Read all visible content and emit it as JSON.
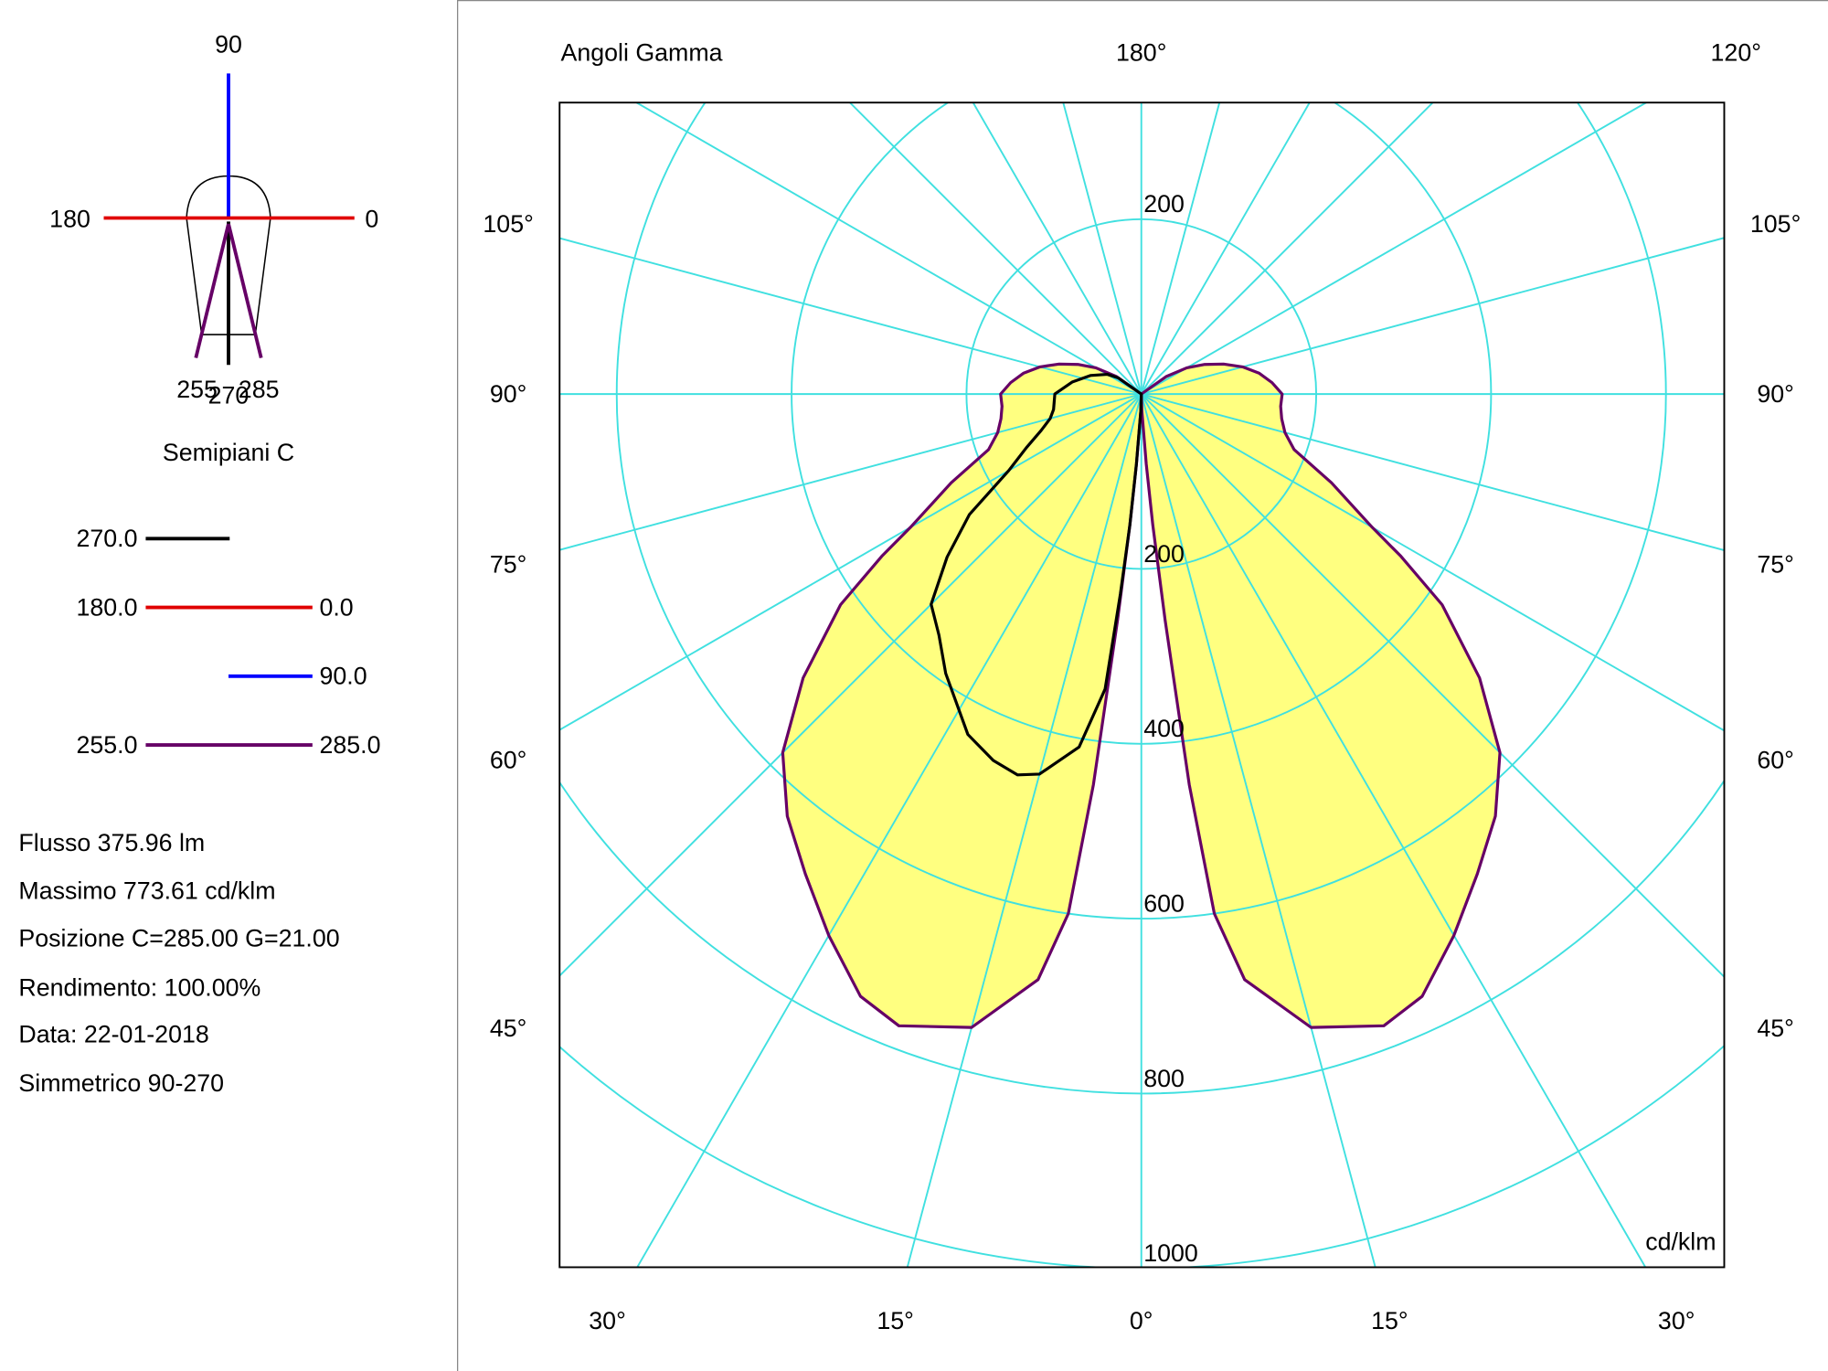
{
  "left_panel": {
    "icon_labels": {
      "top": "90",
      "left": "180",
      "right": "0",
      "b1": "255",
      "b2": "270",
      "b3": "285"
    },
    "semipiani_title": "Semipiani C",
    "legend": [
      {
        "left": "270.0",
        "right": "",
        "color": "#000000"
      },
      {
        "left": "180.0",
        "right": "0.0",
        "color": "#e00000"
      },
      {
        "left": "",
        "right": "90.0",
        "color": "#0000ff"
      },
      {
        "left": "255.0",
        "right": "285.0",
        "color": "#660066"
      }
    ],
    "info": [
      "Flusso 375.96  lm",
      "Massimo 773.61  cd/klm",
      "Posizione C=285.00 G=21.00",
      "Rendimento: 100.00%",
      "Data: 22-01-2018",
      "Simmetrico 90-270"
    ]
  },
  "chart_data": {
    "type": "polar",
    "title": "Angoli Gamma",
    "unit": "cd/klm",
    "top_labels": [
      "180°",
      "120°"
    ],
    "side_labels": [
      "105°",
      "90°",
      "75°",
      "60°",
      "45°"
    ],
    "bottom_labels": [
      "30°",
      "15°",
      "0°",
      "15°",
      "30°"
    ],
    "radial_ticks": [
      200,
      400,
      600,
      800,
      1000
    ],
    "radial_tick_top": "200",
    "angle_step_deg": 15,
    "rmax": 1000,
    "grid_color": "#40e0e0",
    "fill_color": "#ffff80",
    "series": [
      {
        "name": "255.0 - 285.0",
        "color": "#660066",
        "filled": true,
        "sides": [
          "left",
          "right"
        ],
        "gamma": [
          0,
          2,
          4,
          5,
          6,
          7,
          8,
          10,
          15,
          21,
          25,
          30,
          35,
          40,
          45,
          50,
          55,
          58,
          60,
          65,
          70,
          75,
          80,
          85,
          90,
          95,
          100,
          105,
          110,
          115,
          120,
          125,
          130
        ],
        "values": [
          0,
          20,
          80,
          150,
          260,
          450,
          600,
          680,
          750,
          774,
          760,
          715,
          670,
          630,
          580,
          505,
          420,
          350,
          305,
          240,
          186,
          170,
          163,
          160,
          161,
          150,
          137,
          120,
          100,
          80,
          60,
          35,
          0
        ]
      },
      {
        "name": "270.0",
        "color": "#000000",
        "filled": false,
        "sides": [
          "left"
        ],
        "gamma": [
          0,
          2,
          4,
          5,
          6,
          7,
          10,
          15,
          18,
          22,
          27,
          35,
          40,
          45,
          50,
          55,
          60,
          65,
          70,
          75,
          80,
          90,
          100,
          110,
          120,
          125,
          130
        ],
        "values": [
          0,
          20,
          80,
          150,
          230,
          340,
          410,
          450,
          458,
          452,
          437,
          390,
          360,
          340,
          290,
          240,
          175,
          145,
          122,
          108,
          102,
          99,
          80,
          62,
          45,
          32,
          0
        ]
      }
    ]
  }
}
